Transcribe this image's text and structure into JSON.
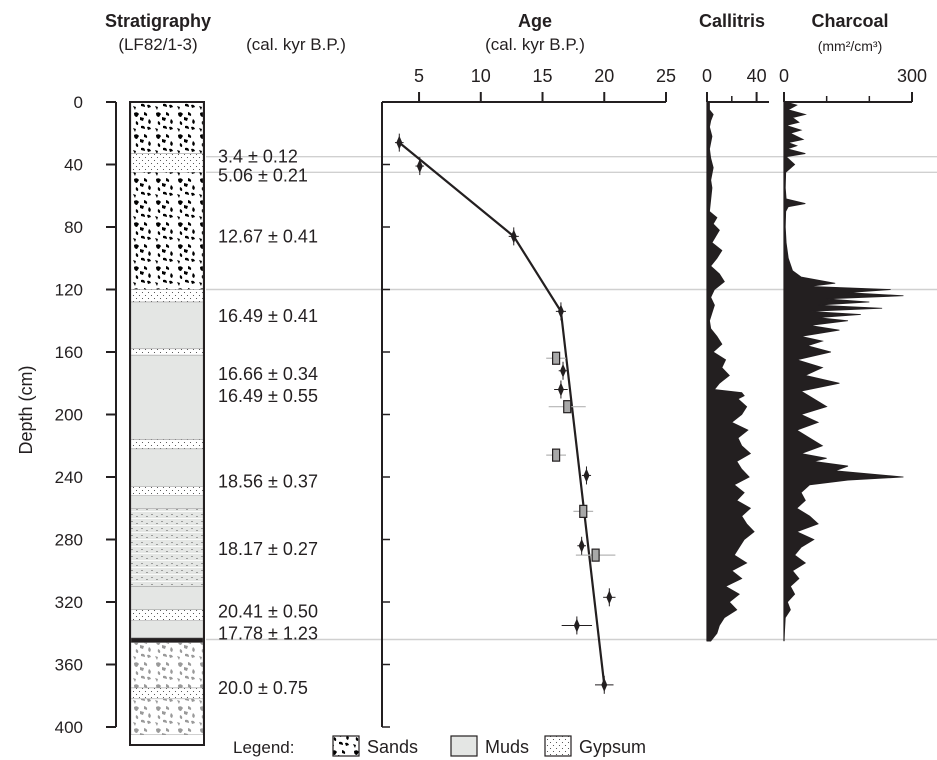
{
  "chart_data": [
    {
      "type": "table",
      "title": "Stratigraphy",
      "subtitle": "(LF82/1-3)",
      "ages_header": "(cal. kyr B.P.)",
      "ylabel": "Depth (cm)",
      "ylim": [
        0,
        400
      ],
      "yticks": [
        0,
        40,
        80,
        120,
        160,
        200,
        240,
        280,
        320,
        360,
        400
      ],
      "units": [
        {
          "from": 0,
          "to": 33,
          "lith": "sands"
        },
        {
          "from": 33,
          "to": 45,
          "lith": "gypsum"
        },
        {
          "from": 45,
          "to": 120,
          "lith": "sands"
        },
        {
          "from": 120,
          "to": 128,
          "lith": "gypsum"
        },
        {
          "from": 128,
          "to": 158,
          "lith": "muds"
        },
        {
          "from": 158,
          "to": 162,
          "lith": "gypsum"
        },
        {
          "from": 162,
          "to": 216,
          "lith": "muds"
        },
        {
          "from": 216,
          "to": 222,
          "lith": "gypsum"
        },
        {
          "from": 222,
          "to": 246,
          "lith": "muds"
        },
        {
          "from": 246,
          "to": 252,
          "lith": "gypsum"
        },
        {
          "from": 252,
          "to": 260,
          "lith": "muds"
        },
        {
          "from": 260,
          "to": 310,
          "lith": "muds-gypsum"
        },
        {
          "from": 310,
          "to": 325,
          "lith": "muds"
        },
        {
          "from": 325,
          "to": 332,
          "lith": "gypsum"
        },
        {
          "from": 332,
          "to": 343,
          "lith": "muds"
        },
        {
          "from": 343,
          "to": 346,
          "lith": "black"
        },
        {
          "from": 346,
          "to": 375,
          "lith": "grey-sands"
        },
        {
          "from": 375,
          "to": 382,
          "lith": "gypsum"
        },
        {
          "from": 382,
          "to": 405,
          "lith": "grey-sands"
        }
      ],
      "age_labels": [
        {
          "depth": 35,
          "text": "3.4 ± 0.12"
        },
        {
          "depth": 47,
          "text": "5.06 ± 0.21"
        },
        {
          "depth": 86,
          "text": "12.67 ± 0.41"
        },
        {
          "depth": 137,
          "text": "16.49 ± 0.41"
        },
        {
          "depth": 174,
          "text": "16.66 ± 0.34"
        },
        {
          "depth": 188,
          "text": "16.49 ± 0.55"
        },
        {
          "depth": 243,
          "text": "18.56 ± 0.37"
        },
        {
          "depth": 286,
          "text": "18.17 ± 0.27"
        },
        {
          "depth": 326,
          "text": "20.41 ± 0.50"
        },
        {
          "depth": 340,
          "text": "17.78 ± 1.23"
        },
        {
          "depth": 375,
          "text": "20.0 ± 0.75"
        }
      ],
      "legend": {
        "prefix": "Legend:",
        "items": [
          {
            "label": "Sands",
            "lith": "sands"
          },
          {
            "label": "Muds",
            "lith": "muds"
          },
          {
            "label": "Gypsum",
            "lith": "gypsum"
          }
        ]
      }
    },
    {
      "type": "scatter",
      "title": "Age",
      "xlabel": "(cal. kyr B.P.)",
      "xlim": [
        2,
        25
      ],
      "xticks": [
        5,
        10,
        15,
        20,
        25
      ],
      "ylim": [
        0,
        400
      ],
      "points": [
        {
          "age": 3.4,
          "depth": 26,
          "err": 0.12
        },
        {
          "age": 5.06,
          "depth": 41,
          "err": 0.21
        },
        {
          "age": 12.67,
          "depth": 86,
          "err": 0.41
        },
        {
          "age": 16.49,
          "depth": 134,
          "err": 0.41
        },
        {
          "age": 16.66,
          "depth": 172,
          "err": 0.34
        },
        {
          "age": 16.49,
          "depth": 184,
          "err": 0.55
        },
        {
          "age": 18.56,
          "depth": 239,
          "err": 0.37
        },
        {
          "age": 18.17,
          "depth": 284,
          "err": 0.27
        },
        {
          "age": 20.41,
          "depth": 317,
          "err": 0.5
        },
        {
          "age": 17.78,
          "depth": 335,
          "err": 1.23
        },
        {
          "age": 20.0,
          "depth": 373,
          "err": 0.75
        }
      ],
      "alt_points": [
        {
          "age": 16.1,
          "depth": 164,
          "err": 0.8
        },
        {
          "age": 17.0,
          "depth": 195,
          "err": 1.5
        },
        {
          "age": 16.1,
          "depth": 226,
          "err": 0.8
        },
        {
          "age": 18.3,
          "depth": 262,
          "err": 0.8
        },
        {
          "age": 19.3,
          "depth": 290,
          "err": 1.6
        }
      ],
      "age_model": [
        [
          3.4,
          26
        ],
        [
          12.67,
          86
        ],
        [
          16.49,
          134
        ],
        [
          20.0,
          373
        ]
      ]
    },
    {
      "type": "area",
      "title": "Callitris",
      "xlim": [
        0,
        50
      ],
      "xticks": [
        0,
        40
      ],
      "ylim": [
        0,
        400
      ],
      "depth": [
        0,
        5,
        8,
        12,
        16,
        22,
        30,
        36,
        42,
        50,
        55,
        70,
        72,
        74,
        78,
        82,
        86,
        90,
        95,
        100,
        105,
        110,
        115,
        120,
        125,
        130,
        135,
        140,
        145,
        150,
        155,
        160,
        165,
        170,
        175,
        180,
        184,
        186,
        188,
        190,
        195,
        200,
        205,
        210,
        215,
        220,
        225,
        230,
        235,
        240,
        245,
        250,
        255,
        260,
        265,
        270,
        275,
        280,
        285,
        290,
        295,
        300,
        305,
        310,
        315,
        320,
        325,
        330,
        335,
        340,
        345
      ],
      "values": [
        2,
        2,
        5,
        3,
        2,
        4,
        2,
        3,
        5,
        3,
        4,
        2,
        5,
        8,
        5,
        10,
        7,
        4,
        12,
        8,
        3,
        10,
        14,
        6,
        3,
        6,
        4,
        2,
        3,
        8,
        12,
        5,
        15,
        12,
        18,
        10,
        6,
        28,
        30,
        25,
        32,
        28,
        20,
        33,
        25,
        28,
        35,
        24,
        28,
        34,
        22,
        30,
        24,
        35,
        28,
        32,
        38,
        30,
        26,
        22,
        32,
        20,
        28,
        15,
        26,
        18,
        24,
        14,
        10,
        8,
        3
      ]
    },
    {
      "type": "area",
      "title": "Charcoal",
      "xlabel": "(mm²/cm³)",
      "xlim": [
        0,
        300
      ],
      "xticks": [
        0,
        300
      ],
      "ylim": [
        0,
        400
      ],
      "depth": [
        0,
        2,
        5,
        8,
        10,
        13,
        15,
        18,
        20,
        24,
        26,
        28,
        30,
        33,
        35,
        40,
        45,
        55,
        62,
        65,
        67,
        70,
        80,
        90,
        100,
        108,
        112,
        116,
        118,
        120,
        122,
        124,
        126,
        128,
        130,
        132,
        134,
        136,
        138,
        140,
        143,
        146,
        150,
        153,
        156,
        160,
        165,
        170,
        175,
        180,
        185,
        190,
        195,
        200,
        205,
        210,
        215,
        220,
        225,
        228,
        230,
        233,
        236,
        238,
        240,
        242,
        245,
        250,
        255,
        260,
        265,
        270,
        275,
        280,
        285,
        290,
        295,
        300,
        305,
        310,
        315,
        320,
        325,
        330,
        345
      ],
      "values": [
        5,
        30,
        10,
        50,
        20,
        35,
        5,
        40,
        15,
        45,
        10,
        30,
        8,
        50,
        5,
        25,
        4,
        3,
        5,
        50,
        10,
        4,
        3,
        5,
        10,
        20,
        40,
        120,
        60,
        250,
        150,
        280,
        100,
        200,
        80,
        230,
        60,
        180,
        80,
        150,
        60,
        130,
        40,
        90,
        55,
        110,
        30,
        90,
        50,
        130,
        40,
        70,
        100,
        40,
        80,
        30,
        60,
        90,
        40,
        100,
        70,
        150,
        120,
        200,
        280,
        150,
        60,
        40,
        50,
        30,
        60,
        80,
        30,
        70,
        40,
        25,
        50,
        20,
        35,
        15,
        25,
        8,
        15,
        3,
        0
      ]
    }
  ]
}
